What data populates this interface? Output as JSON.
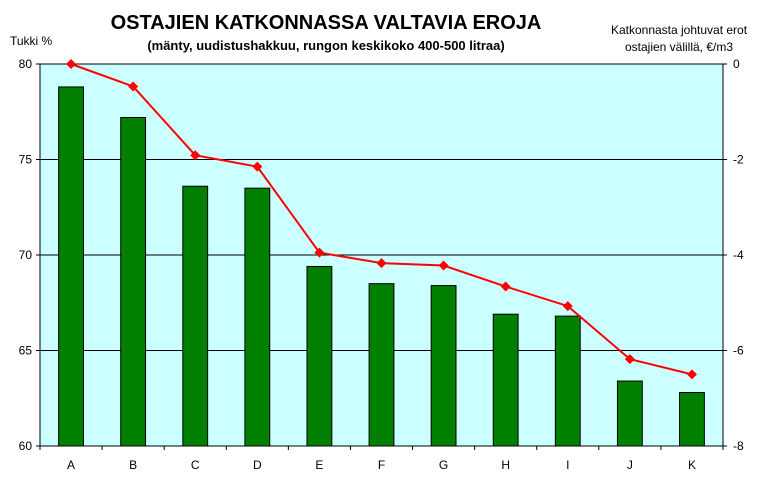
{
  "chart_data": {
    "type": "bar",
    "title": "OSTAJIEN KATKONNASSA VALTAVIA EROJA",
    "subtitle": "(mänty, uudistushakkuu, rungon keskikoko 400-500 litraa)",
    "ylabel_left": "Tukki %",
    "ylabel_right_line1": "Katkonnasta johtuvat erot",
    "ylabel_right_line2": "ostajien välillä, €/m3",
    "categories": [
      "A",
      "B",
      "C",
      "D",
      "E",
      "F",
      "G",
      "H",
      "I",
      "J",
      "K"
    ],
    "ylim_left": [
      60,
      80
    ],
    "yticks_left": [
      "60",
      "65",
      "70",
      "75",
      "80"
    ],
    "ylim_right": [
      -8,
      0
    ],
    "yticks_right": [
      "-8",
      "-6",
      "-4",
      "-2",
      "0"
    ],
    "grid": true,
    "series": [
      {
        "type": "bar",
        "axis": "left",
        "values": [
          78.8,
          77.2,
          73.6,
          73.5,
          69.4,
          68.5,
          68.4,
          66.9,
          66.8,
          63.4,
          62.8
        ]
      },
      {
        "type": "line",
        "axis": "right",
        "values": [
          0.0,
          -0.47,
          -1.91,
          -2.15,
          -3.95,
          -4.17,
          -4.22,
          -4.66,
          -5.07,
          -6.18,
          -6.5
        ]
      }
    ],
    "colors": {
      "plot_bg": "#ccffff",
      "bar": "#007f00",
      "line": "#ff0000",
      "marker": "#ff0000",
      "grid": "#000000"
    }
  }
}
